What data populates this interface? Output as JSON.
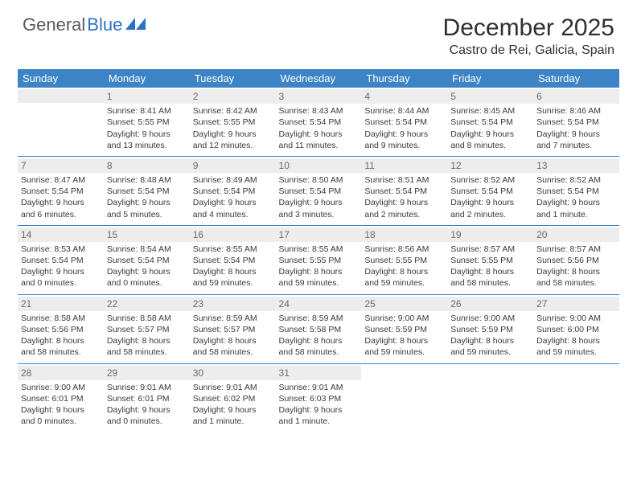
{
  "brand": {
    "part1": "General",
    "part2": "Blue"
  },
  "title": "December 2025",
  "location": "Castro de Rei, Galicia, Spain",
  "accent_color": "#3d84c6",
  "text_color": "#333333",
  "shade_color": "#ededed",
  "weekdays": [
    "Sunday",
    "Monday",
    "Tuesday",
    "Wednesday",
    "Thursday",
    "Friday",
    "Saturday"
  ],
  "first_weekday_index": 1,
  "days": [
    {
      "n": 1,
      "sunrise": "8:41 AM",
      "sunset": "5:55 PM",
      "daylight": "9 hours and 13 minutes."
    },
    {
      "n": 2,
      "sunrise": "8:42 AM",
      "sunset": "5:55 PM",
      "daylight": "9 hours and 12 minutes."
    },
    {
      "n": 3,
      "sunrise": "8:43 AM",
      "sunset": "5:54 PM",
      "daylight": "9 hours and 11 minutes."
    },
    {
      "n": 4,
      "sunrise": "8:44 AM",
      "sunset": "5:54 PM",
      "daylight": "9 hours and 9 minutes."
    },
    {
      "n": 5,
      "sunrise": "8:45 AM",
      "sunset": "5:54 PM",
      "daylight": "9 hours and 8 minutes."
    },
    {
      "n": 6,
      "sunrise": "8:46 AM",
      "sunset": "5:54 PM",
      "daylight": "9 hours and 7 minutes."
    },
    {
      "n": 7,
      "sunrise": "8:47 AM",
      "sunset": "5:54 PM",
      "daylight": "9 hours and 6 minutes."
    },
    {
      "n": 8,
      "sunrise": "8:48 AM",
      "sunset": "5:54 PM",
      "daylight": "9 hours and 5 minutes."
    },
    {
      "n": 9,
      "sunrise": "8:49 AM",
      "sunset": "5:54 PM",
      "daylight": "9 hours and 4 minutes."
    },
    {
      "n": 10,
      "sunrise": "8:50 AM",
      "sunset": "5:54 PM",
      "daylight": "9 hours and 3 minutes."
    },
    {
      "n": 11,
      "sunrise": "8:51 AM",
      "sunset": "5:54 PM",
      "daylight": "9 hours and 2 minutes."
    },
    {
      "n": 12,
      "sunrise": "8:52 AM",
      "sunset": "5:54 PM",
      "daylight": "9 hours and 2 minutes."
    },
    {
      "n": 13,
      "sunrise": "8:52 AM",
      "sunset": "5:54 PM",
      "daylight": "9 hours and 1 minute."
    },
    {
      "n": 14,
      "sunrise": "8:53 AM",
      "sunset": "5:54 PM",
      "daylight": "9 hours and 0 minutes."
    },
    {
      "n": 15,
      "sunrise": "8:54 AM",
      "sunset": "5:54 PM",
      "daylight": "9 hours and 0 minutes."
    },
    {
      "n": 16,
      "sunrise": "8:55 AM",
      "sunset": "5:54 PM",
      "daylight": "8 hours and 59 minutes."
    },
    {
      "n": 17,
      "sunrise": "8:55 AM",
      "sunset": "5:55 PM",
      "daylight": "8 hours and 59 minutes."
    },
    {
      "n": 18,
      "sunrise": "8:56 AM",
      "sunset": "5:55 PM",
      "daylight": "8 hours and 59 minutes."
    },
    {
      "n": 19,
      "sunrise": "8:57 AM",
      "sunset": "5:55 PM",
      "daylight": "8 hours and 58 minutes."
    },
    {
      "n": 20,
      "sunrise": "8:57 AM",
      "sunset": "5:56 PM",
      "daylight": "8 hours and 58 minutes."
    },
    {
      "n": 21,
      "sunrise": "8:58 AM",
      "sunset": "5:56 PM",
      "daylight": "8 hours and 58 minutes."
    },
    {
      "n": 22,
      "sunrise": "8:58 AM",
      "sunset": "5:57 PM",
      "daylight": "8 hours and 58 minutes."
    },
    {
      "n": 23,
      "sunrise": "8:59 AM",
      "sunset": "5:57 PM",
      "daylight": "8 hours and 58 minutes."
    },
    {
      "n": 24,
      "sunrise": "8:59 AM",
      "sunset": "5:58 PM",
      "daylight": "8 hours and 58 minutes."
    },
    {
      "n": 25,
      "sunrise": "9:00 AM",
      "sunset": "5:59 PM",
      "daylight": "8 hours and 59 minutes."
    },
    {
      "n": 26,
      "sunrise": "9:00 AM",
      "sunset": "5:59 PM",
      "daylight": "8 hours and 59 minutes."
    },
    {
      "n": 27,
      "sunrise": "9:00 AM",
      "sunset": "6:00 PM",
      "daylight": "8 hours and 59 minutes."
    },
    {
      "n": 28,
      "sunrise": "9:00 AM",
      "sunset": "6:01 PM",
      "daylight": "9 hours and 0 minutes."
    },
    {
      "n": 29,
      "sunrise": "9:01 AM",
      "sunset": "6:01 PM",
      "daylight": "9 hours and 0 minutes."
    },
    {
      "n": 30,
      "sunrise": "9:01 AM",
      "sunset": "6:02 PM",
      "daylight": "9 hours and 1 minute."
    },
    {
      "n": 31,
      "sunrise": "9:01 AM",
      "sunset": "6:03 PM",
      "daylight": "9 hours and 1 minute."
    }
  ],
  "labels": {
    "sunrise": "Sunrise:",
    "sunset": "Sunset:",
    "daylight": "Daylight:"
  }
}
